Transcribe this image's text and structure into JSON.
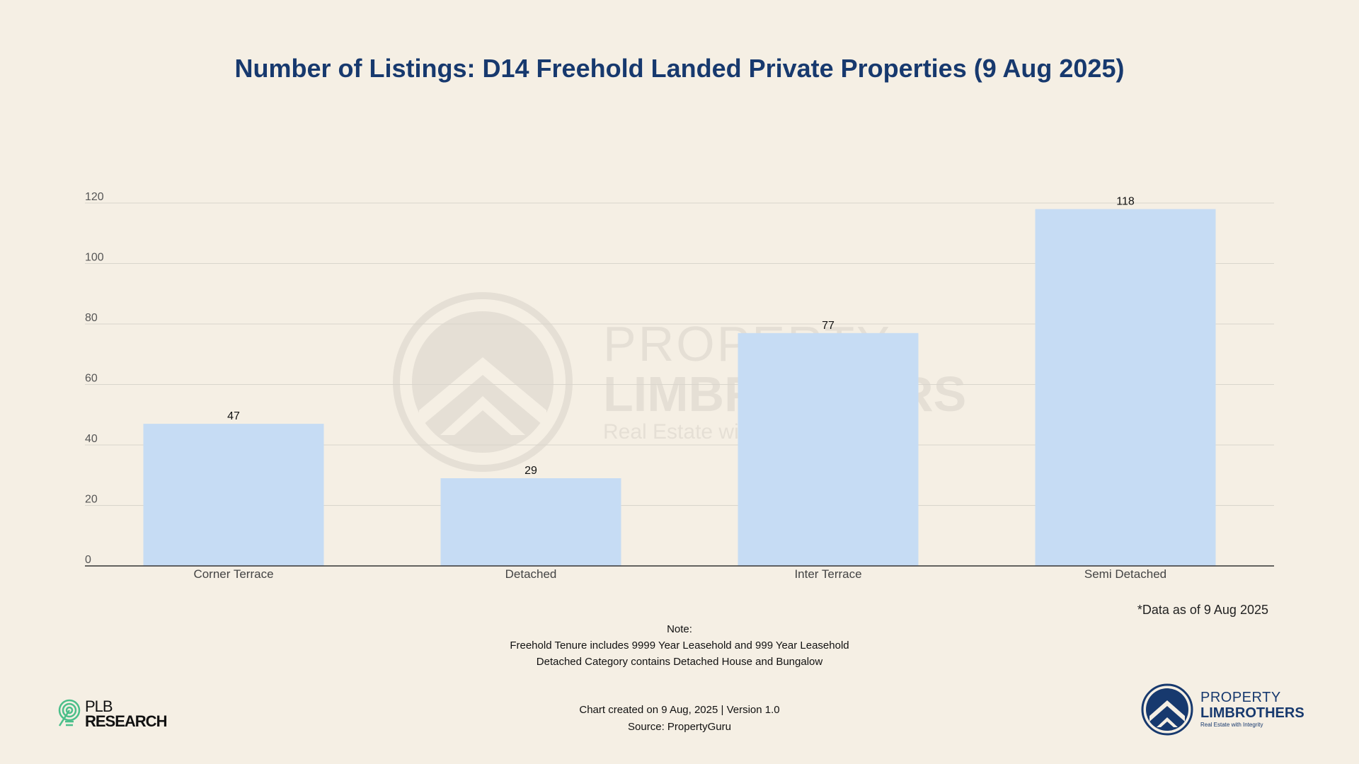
{
  "title": "Number of Listings: D14 Freehold Landed Private Properties (9 Aug 2025)",
  "chart_data": {
    "type": "bar",
    "title": "Number of Listings: D14 Freehold Landed Private Properties (9 Aug 2025)",
    "categories": [
      "Corner Terrace",
      "Detached",
      "Inter Terrace",
      "Semi Detached"
    ],
    "values": [
      47,
      29,
      77,
      118
    ],
    "data_labels": [
      "47",
      "29",
      "77",
      "118"
    ],
    "y_ticks": [
      "0",
      "20",
      "40",
      "60",
      "80",
      "100",
      "120"
    ],
    "ylim": [
      0,
      120
    ],
    "grid": true,
    "legend": "none",
    "xlabel": "",
    "ylabel": ""
  },
  "data_note": "*Data as of 9 Aug 2025",
  "notes": {
    "heading": "Note:",
    "line1": "Freehold Tenure includes 9999 Year Leasehold and 999 Year Leasehold",
    "line2": "Detached Category contains Detached House and Bungalow"
  },
  "footer": {
    "created": "Chart created on 9 Aug, 2025 | Version 1.0",
    "source": "Source: PropertyGuru"
  },
  "plb_logo": {
    "line1": "PLB",
    "line2": "RESEARCH"
  },
  "brand_logo": {
    "line1": "PROPERTY",
    "line2": "LIMBROTHERS",
    "tagline": "Real Estate with Integrity"
  },
  "watermark": {
    "line1": "PROPERTY",
    "line2": "LIMBROTHERS",
    "line3": "Real Estate with Integrity"
  },
  "colors": {
    "bar": "#c6dcf4",
    "title": "#17396e",
    "background": "#f5efe4",
    "grid": "#d9d5cc",
    "axis": "#333333"
  }
}
